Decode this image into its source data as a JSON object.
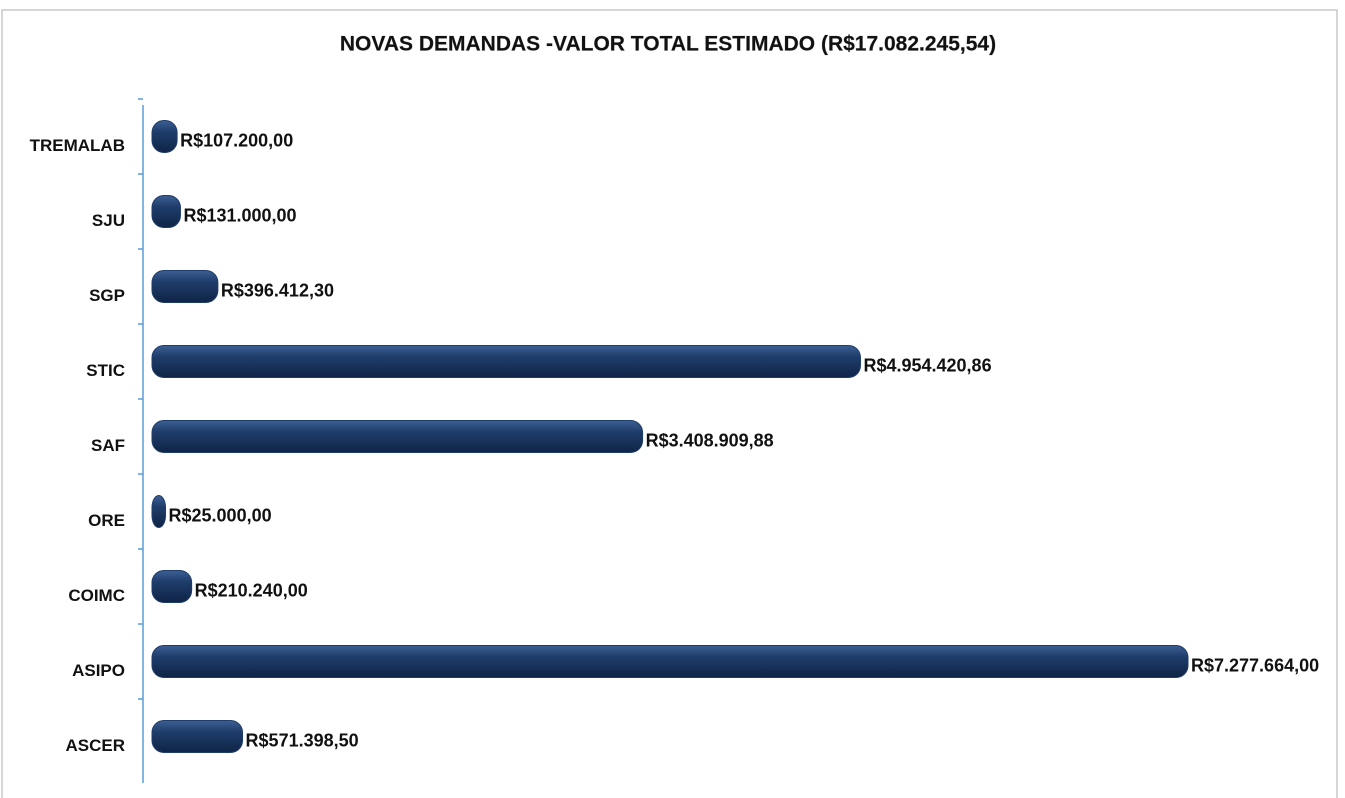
{
  "chart_data": {
    "type": "bar",
    "orientation": "horizontal",
    "title": "NOVAS DEMANDAS -VALOR TOTAL ESTIMADO (R$17.082.245,54)",
    "categories": [
      "TREMALAB",
      "SJU",
      "SGP",
      "STIC",
      "SAF",
      "ORE",
      "COIMC",
      "ASIPO",
      "ASCER"
    ],
    "values": [
      107200,
      131000,
      396412.3,
      4954420.86,
      3408909.88,
      25000,
      210240,
      7277664,
      571398.5
    ],
    "value_labels": [
      "R$107.200,00",
      "R$131.000,00",
      "R$396.412,30",
      "R$4.954.420,86",
      "R$3.408.909,88",
      "R$25.000,00",
      "R$210.240,00",
      "R$7.277.664,00",
      "R$571.398,50"
    ],
    "color": "#1f3d6b"
  }
}
